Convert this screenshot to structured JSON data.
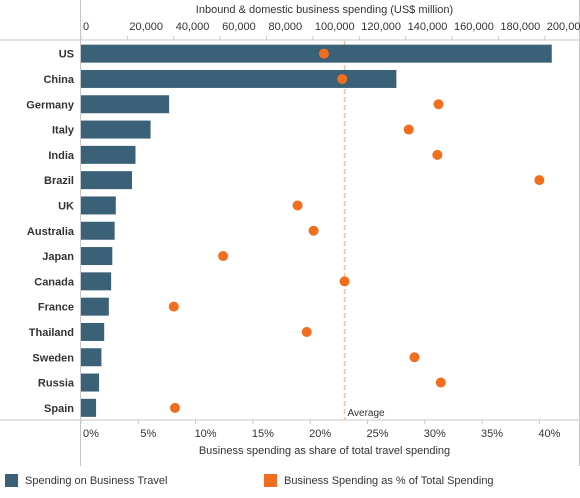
{
  "chart_data": {
    "type": "bar",
    "top_axis_title": "Inbound & domestic business spending (US$ million)",
    "bottom_axis_title": "Business spending as share of total travel spending",
    "categories": [
      "US",
      "China",
      "Germany",
      "Italy",
      "India",
      "Brazil",
      "UK",
      "Australia",
      "Japan",
      "Canada",
      "France",
      "Thailand",
      "Sweden",
      "Russia",
      "Spain"
    ],
    "series": [
      {
        "name": "Spending on Business Travel",
        "type": "bar",
        "axis": "top",
        "color": "#3b6178",
        "values": [
          203000,
          136000,
          38000,
          30000,
          23500,
          22000,
          15000,
          14500,
          13500,
          13000,
          12000,
          10000,
          8800,
          7800,
          6500
        ]
      },
      {
        "name": "Business Spending as % of Total Spending",
        "type": "scatter",
        "axis": "bottom",
        "color": "#f26d1d",
        "values": [
          21.2,
          22.8,
          31.2,
          28.6,
          31.1,
          40.0,
          18.9,
          20.3,
          12.4,
          23.0,
          8.1,
          19.7,
          29.1,
          31.4,
          8.2
        ]
      }
    ],
    "top_axis": {
      "range": [
        0,
        210000
      ],
      "ticks": [
        0,
        20000,
        40000,
        60000,
        80000,
        100000,
        120000,
        140000,
        160000,
        180000,
        200000
      ],
      "tick_labels": [
        "0",
        "20,000",
        "40,000",
        "60,000",
        "80,000",
        "100,000",
        "120,000",
        "140,000",
        "160,000",
        "180,000",
        "200,000"
      ]
    },
    "bottom_axis": {
      "range": [
        0,
        42.5
      ],
      "ticks": [
        0,
        5,
        10,
        15,
        20,
        25,
        30,
        35,
        40
      ],
      "tick_labels": [
        "0%",
        "5%",
        "10%",
        "15%",
        "20%",
        "25%",
        "30%",
        "35%",
        "40%"
      ]
    },
    "reference_line": {
      "label": "Average",
      "value": 23.0,
      "axis": "bottom",
      "color": "#f5c29b"
    },
    "grid": false
  },
  "legend": [
    {
      "label": "Spending on Business Travel",
      "color": "#3b6178",
      "shape": "square"
    },
    {
      "label": "Business Spending as % of Total Spending",
      "color": "#f26d1d",
      "shape": "square"
    }
  ]
}
